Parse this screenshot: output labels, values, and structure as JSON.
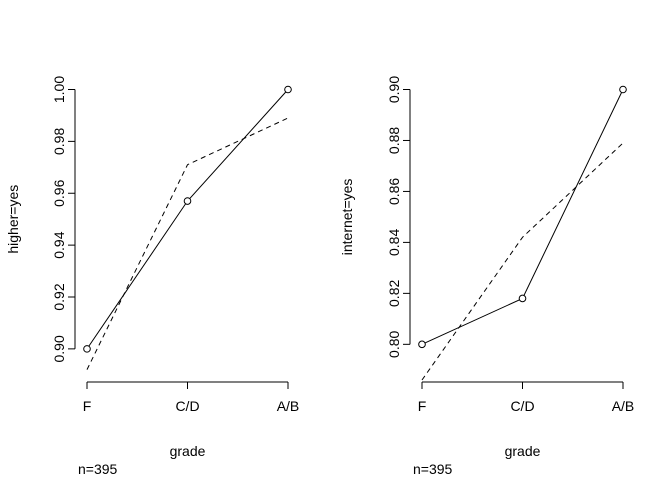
{
  "chart_data": [
    {
      "type": "line",
      "xlabel": "grade",
      "ylabel": "higher=yes",
      "note": "n=395",
      "categories": [
        "F",
        "C/D",
        "A/B"
      ],
      "yticks": [
        "0.90",
        "0.92",
        "0.94",
        "0.96",
        "0.98",
        "1.00"
      ],
      "ylim": [
        0.888,
        1.0
      ],
      "series": [
        {
          "style": "solid",
          "markers": true,
          "values": [
            0.9,
            0.957,
            1.0
          ]
        },
        {
          "style": "dashed",
          "markers": false,
          "values": [
            0.892,
            0.971,
            0.989
          ]
        }
      ]
    },
    {
      "type": "line",
      "xlabel": "grade",
      "ylabel": "internet=yes",
      "note": "n=395",
      "categories": [
        "F",
        "C/D",
        "A/B"
      ],
      "yticks": [
        "0.80",
        "0.82",
        "0.84",
        "0.86",
        "0.88",
        "0.90"
      ],
      "ylim": [
        0.786,
        0.9
      ],
      "series": [
        {
          "style": "solid",
          "markers": true,
          "values": [
            0.8,
            0.818,
            0.9
          ]
        },
        {
          "style": "dashed",
          "markers": false,
          "values": [
            0.786,
            0.842,
            0.879
          ]
        }
      ]
    }
  ]
}
